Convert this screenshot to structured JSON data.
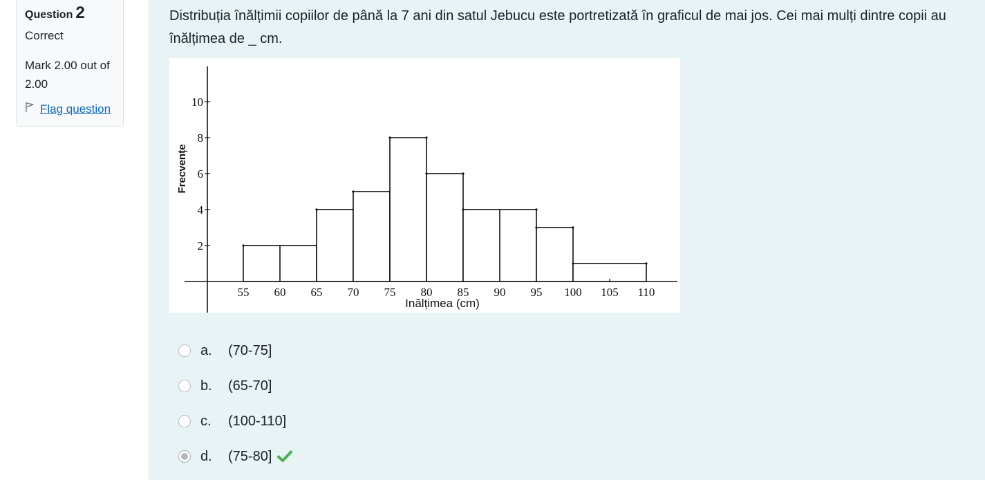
{
  "info": {
    "question_label": "Question",
    "question_number": "2",
    "state": "Correct",
    "grade": "Mark 2.00 out of 2.00",
    "flag_label": "Flag question",
    "flag_icon": "flag-outline-icon"
  },
  "question": {
    "text": "Distribuția înălțimii copiilor de până la 7 ani din satul Jebucu este portretizată în graficul de mai jos. Cei mai mulți dintre copii au înălțimea de _ cm."
  },
  "chart_data": {
    "type": "bar",
    "title": "",
    "xlabel": "Inălțimea (cm)",
    "ylabel": "Frecvențe",
    "x_ticks": [
      "55",
      "60",
      "65",
      "70",
      "75",
      "80",
      "85",
      "90",
      "95",
      "100",
      "105",
      "110"
    ],
    "y_ticks": [
      "2",
      "4",
      "6",
      "8",
      "10"
    ],
    "ylim": [
      0,
      10
    ],
    "bins": [
      {
        "from": 55,
        "to": 65,
        "value": 2
      },
      {
        "from": 65,
        "to": 70,
        "value": 4
      },
      {
        "from": 70,
        "to": 75,
        "value": 5
      },
      {
        "from": 75,
        "to": 80,
        "value": 8
      },
      {
        "from": 80,
        "to": 85,
        "value": 6
      },
      {
        "from": 85,
        "to": 95,
        "value": 4
      },
      {
        "from": 95,
        "to": 100,
        "value": 3
      },
      {
        "from": 100,
        "to": 110,
        "value": 1
      }
    ],
    "dividers": [
      60,
      90
    ]
  },
  "answers": [
    {
      "letter": "a.",
      "text": "(70-75]",
      "checked": false
    },
    {
      "letter": "b.",
      "text": "(65-70]",
      "checked": false
    },
    {
      "letter": "c.",
      "text": "(100-110]",
      "checked": false
    },
    {
      "letter": "d.",
      "text": "(75-80]",
      "checked": true
    }
  ],
  "colors": {
    "correct": "#4caf50",
    "link": "#0f6cbf",
    "content_bg": "#e7f3f5"
  }
}
